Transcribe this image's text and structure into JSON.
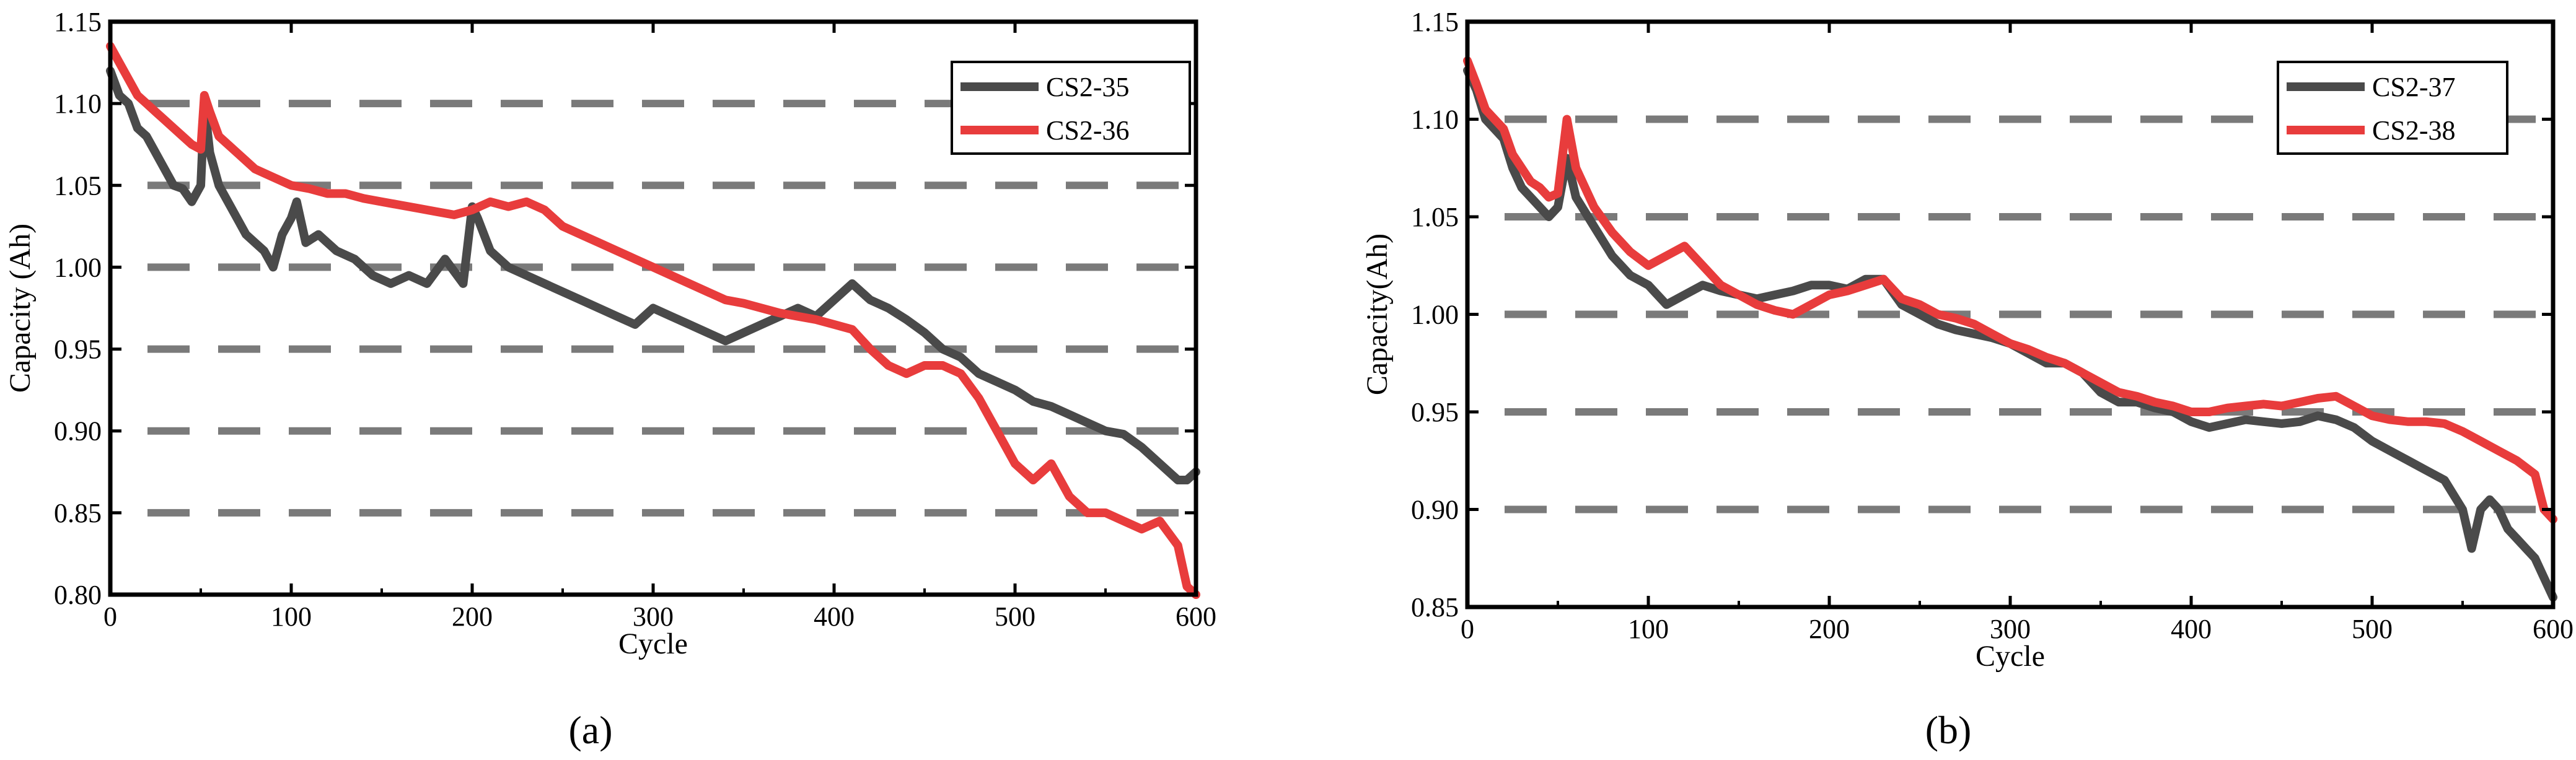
{
  "figure": {
    "panels": [
      "(a)",
      "(b)"
    ]
  },
  "chart_data": [
    {
      "type": "line",
      "panel_label": "a",
      "title": "",
      "xlabel": "Cycle",
      "ylabel": "Capacity (Ah)",
      "xlim": [
        0,
        600
      ],
      "ylim": [
        0.8,
        1.15
      ],
      "xticks": [
        "0",
        "100",
        "200",
        "300",
        "400",
        "500",
        "600"
      ],
      "yticks": [
        "0.80",
        "0.85",
        "0.90",
        "0.95",
        "1.00",
        "1.05",
        "1.10",
        "1.15"
      ],
      "gridlines_y": [
        0.85,
        0.9,
        0.95,
        1.0,
        1.05,
        1.1
      ],
      "grid": "dashed horizontal",
      "legend_position": "top-right",
      "series": [
        {
          "name": "CS2-35",
          "color": "#4a4a4a",
          "x": [
            0,
            5,
            10,
            15,
            20,
            25,
            30,
            35,
            40,
            45,
            50,
            52,
            55,
            60,
            65,
            70,
            75,
            80,
            85,
            90,
            95,
            100,
            103,
            108,
            115,
            125,
            135,
            145,
            155,
            165,
            175,
            185,
            195,
            200,
            203,
            210,
            220,
            230,
            240,
            250,
            260,
            270,
            280,
            290,
            300,
            310,
            320,
            330,
            340,
            350,
            360,
            370,
            380,
            390,
            400,
            410,
            420,
            430,
            440,
            450,
            460,
            470,
            480,
            490,
            500,
            510,
            520,
            530,
            540,
            550,
            560,
            570,
            580,
            590,
            595,
            600
          ],
          "y": [
            1.12,
            1.105,
            1.1,
            1.085,
            1.08,
            1.07,
            1.06,
            1.05,
            1.048,
            1.04,
            1.05,
            1.1,
            1.07,
            1.05,
            1.04,
            1.03,
            1.02,
            1.015,
            1.01,
            1.0,
            1.02,
            1.03,
            1.04,
            1.015,
            1.02,
            1.01,
            1.005,
            0.995,
            0.99,
            0.995,
            0.99,
            1.005,
            0.99,
            1.037,
            1.03,
            1.01,
            1.0,
            0.995,
            0.99,
            0.985,
            0.98,
            0.975,
            0.97,
            0.965,
            0.975,
            0.97,
            0.965,
            0.96,
            0.955,
            0.96,
            0.965,
            0.97,
            0.975,
            0.97,
            0.98,
            0.99,
            0.98,
            0.975,
            0.968,
            0.96,
            0.95,
            0.945,
            0.935,
            0.93,
            0.925,
            0.918,
            0.915,
            0.91,
            0.905,
            0.9,
            0.898,
            0.89,
            0.88,
            0.87,
            0.87,
            0.875
          ]
        },
        {
          "name": "CS2-36",
          "color": "#e83c3c",
          "x": [
            0,
            5,
            10,
            15,
            20,
            25,
            30,
            35,
            40,
            45,
            50,
            52,
            55,
            60,
            70,
            80,
            90,
            100,
            110,
            120,
            130,
            140,
            150,
            160,
            170,
            180,
            190,
            200,
            210,
            220,
            230,
            240,
            250,
            260,
            270,
            280,
            290,
            300,
            310,
            320,
            330,
            340,
            350,
            360,
            370,
            380,
            390,
            400,
            410,
            420,
            430,
            440,
            450,
            460,
            470,
            480,
            490,
            500,
            510,
            520,
            530,
            540,
            550,
            560,
            570,
            580,
            590,
            595,
            600
          ],
          "y": [
            1.135,
            1.125,
            1.115,
            1.105,
            1.1,
            1.095,
            1.09,
            1.085,
            1.08,
            1.075,
            1.072,
            1.105,
            1.095,
            1.08,
            1.07,
            1.06,
            1.055,
            1.05,
            1.048,
            1.045,
            1.045,
            1.042,
            1.04,
            1.038,
            1.036,
            1.034,
            1.032,
            1.035,
            1.04,
            1.037,
            1.04,
            1.035,
            1.025,
            1.02,
            1.015,
            1.01,
            1.005,
            1.0,
            0.995,
            0.99,
            0.985,
            0.98,
            0.978,
            0.975,
            0.972,
            0.97,
            0.968,
            0.965,
            0.962,
            0.95,
            0.94,
            0.935,
            0.94,
            0.94,
            0.935,
            0.92,
            0.9,
            0.88,
            0.87,
            0.88,
            0.86,
            0.85,
            0.85,
            0.845,
            0.84,
            0.845,
            0.83,
            0.805,
            0.8
          ]
        }
      ]
    },
    {
      "type": "line",
      "panel_label": "b",
      "title": "",
      "xlabel": "Cycle",
      "ylabel": "Capacity(Ah)",
      "xlim": [
        0,
        600
      ],
      "ylim": [
        0.85,
        1.15
      ],
      "xticks": [
        "0",
        "100",
        "200",
        "300",
        "400",
        "500",
        "600"
      ],
      "yticks": [
        "0.85",
        "0.90",
        "0.95",
        "1.00",
        "1.05",
        "1.10",
        "1.15"
      ],
      "gridlines_y": [
        0.9,
        0.95,
        1.0,
        1.05,
        1.1
      ],
      "grid": "dashed horizontal",
      "legend_position": "top-right",
      "series": [
        {
          "name": "CS2-37",
          "color": "#4a4a4a",
          "x": [
            0,
            5,
            10,
            15,
            20,
            25,
            30,
            35,
            40,
            45,
            50,
            55,
            60,
            70,
            80,
            90,
            100,
            110,
            120,
            130,
            140,
            150,
            160,
            170,
            180,
            190,
            200,
            210,
            220,
            230,
            240,
            250,
            260,
            270,
            280,
            290,
            300,
            310,
            320,
            330,
            340,
            350,
            360,
            370,
            380,
            390,
            400,
            410,
            420,
            430,
            440,
            450,
            460,
            470,
            480,
            490,
            500,
            510,
            520,
            530,
            540,
            550,
            555,
            560,
            565,
            570,
            575,
            580,
            585,
            590,
            595,
            600
          ],
          "y": [
            1.125,
            1.115,
            1.1,
            1.095,
            1.09,
            1.075,
            1.065,
            1.06,
            1.055,
            1.05,
            1.055,
            1.08,
            1.06,
            1.045,
            1.03,
            1.02,
            1.015,
            1.005,
            1.01,
            1.015,
            1.012,
            1.01,
            1.008,
            1.01,
            1.012,
            1.015,
            1.015,
            1.013,
            1.018,
            1.018,
            1.005,
            1.0,
            0.995,
            0.992,
            0.99,
            0.988,
            0.985,
            0.98,
            0.975,
            0.975,
            0.97,
            0.96,
            0.955,
            0.955,
            0.952,
            0.95,
            0.945,
            0.942,
            0.944,
            0.946,
            0.945,
            0.944,
            0.945,
            0.948,
            0.946,
            0.942,
            0.935,
            0.93,
            0.925,
            0.92,
            0.915,
            0.9,
            0.88,
            0.9,
            0.905,
            0.9,
            0.89,
            0.885,
            0.88,
            0.875,
            0.865,
            0.855
          ]
        },
        {
          "name": "CS2-38",
          "color": "#e83c3c",
          "x": [
            0,
            5,
            10,
            15,
            20,
            25,
            30,
            35,
            40,
            45,
            50,
            55,
            60,
            70,
            80,
            90,
            100,
            110,
            120,
            130,
            140,
            150,
            160,
            170,
            180,
            190,
            200,
            210,
            220,
            230,
            240,
            250,
            260,
            270,
            280,
            290,
            300,
            310,
            320,
            330,
            340,
            350,
            360,
            370,
            380,
            390,
            400,
            410,
            420,
            430,
            440,
            450,
            460,
            470,
            480,
            490,
            500,
            510,
            520,
            530,
            540,
            550,
            560,
            570,
            580,
            590,
            595,
            600
          ],
          "y": [
            1.13,
            1.118,
            1.105,
            1.1,
            1.095,
            1.082,
            1.075,
            1.068,
            1.065,
            1.06,
            1.062,
            1.1,
            1.075,
            1.055,
            1.042,
            1.032,
            1.025,
            1.03,
            1.035,
            1.025,
            1.015,
            1.01,
            1.005,
            1.002,
            1.0,
            1.005,
            1.01,
            1.012,
            1.015,
            1.018,
            1.008,
            1.005,
            1.0,
            0.998,
            0.995,
            0.99,
            0.985,
            0.982,
            0.978,
            0.975,
            0.97,
            0.965,
            0.96,
            0.958,
            0.955,
            0.953,
            0.95,
            0.95,
            0.952,
            0.953,
            0.954,
            0.953,
            0.955,
            0.957,
            0.958,
            0.953,
            0.948,
            0.946,
            0.945,
            0.945,
            0.944,
            0.94,
            0.935,
            0.93,
            0.925,
            0.918,
            0.9,
            0.895
          ]
        }
      ]
    }
  ]
}
